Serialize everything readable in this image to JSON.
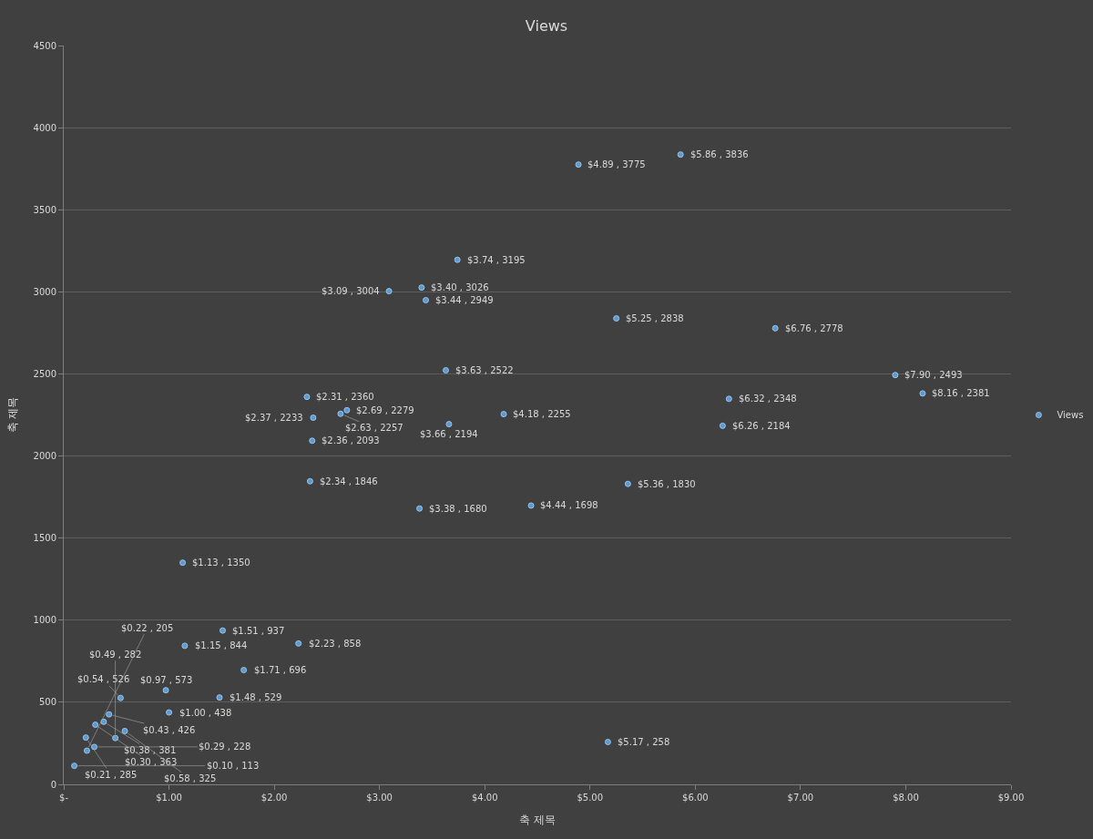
{
  "chart_data": {
    "type": "scatter",
    "title": "Views",
    "xlabel": "축 제목",
    "ylabel": "축 제목",
    "x": [
      4.89,
      5.86,
      3.74,
      3.09,
      3.4,
      3.44,
      5.25,
      6.76,
      3.63,
      7.9,
      8.16,
      2.31,
      6.32,
      2.69,
      2.63,
      2.37,
      4.18,
      3.66,
      6.26,
      2.36,
      2.34,
      5.36,
      3.38,
      4.44,
      1.13,
      1.51,
      1.15,
      2.23,
      1.71,
      0.97,
      0.54,
      1.48,
      1.0,
      0.43,
      0.38,
      0.3,
      0.58,
      0.21,
      0.49,
      0.29,
      0.22,
      0.1,
      5.17
    ],
    "series": [
      {
        "name": "Views",
        "color": "#5b9bd5",
        "values": [
          3775,
          3836,
          3195,
          3004,
          3026,
          2949,
          2838,
          2778,
          2522,
          2493,
          2381,
          2360,
          2348,
          2279,
          2257,
          2233,
          2255,
          2194,
          2184,
          2093,
          1846,
          1830,
          1680,
          1698,
          1350,
          937,
          844,
          858,
          696,
          573,
          526,
          529,
          438,
          426,
          381,
          363,
          325,
          285,
          282,
          228,
          205,
          113,
          258
        ],
        "value_labels": [
          "$4.89 , 3775",
          "$5.86 , 3836",
          "$3.74 , 3195",
          "$3.09 , 3004",
          "$3.40 , 3026",
          "$3.44 , 2949",
          "$5.25 , 2838",
          "$6.76 , 2778",
          "$3.63 , 2522",
          "$7.90 , 2493",
          "$8.16 , 2381",
          "$2.31 , 2360",
          "$6.32 , 2348",
          "$2.69 , 2279",
          "$2.63 , 2257",
          "$2.37 , 2233",
          "$4.18 , 2255",
          "$3.66 , 2194",
          "$6.26 , 2184",
          "$2.36 , 2093",
          "$2.34 , 1846",
          "$5.36 , 1830",
          "$3.38 , 1680",
          "$4.44 , 1698",
          "$1.13 , 1350",
          "$1.51 , 937",
          "$1.15 , 844",
          "$2.23 , 858",
          "$1.71 , 696",
          "$0.97 , 573",
          "$0.54 , 526",
          "$1.48 , 529",
          "$1.00 , 438",
          "$0.43 , 426",
          "$0.38 , 381",
          "$0.30 , 363",
          "$0.58 , 325",
          "$0.21 , 285",
          "$0.49 , 282",
          "$0.29 , 228",
          "$0.22 , 205",
          "$0.10 , 113",
          "$5.17 , 258"
        ]
      }
    ],
    "xlim": [
      0,
      9
    ],
    "xticks": [
      {
        "value": 0,
        "label": "$-"
      },
      {
        "value": 1,
        "label": "$1.00"
      },
      {
        "value": 2,
        "label": "$2.00"
      },
      {
        "value": 3,
        "label": "$3.00"
      },
      {
        "value": 4,
        "label": "$4.00"
      },
      {
        "value": 5,
        "label": "$5.00"
      },
      {
        "value": 6,
        "label": "$6.00"
      },
      {
        "value": 7,
        "label": "$7.00"
      },
      {
        "value": 8,
        "label": "$8.00"
      },
      {
        "value": 9,
        "label": "$9.00"
      }
    ],
    "ylim": [
      0,
      4500
    ],
    "yticks": [
      0,
      500,
      1000,
      1500,
      2000,
      2500,
      3000,
      3500,
      4000,
      4500
    ],
    "grid": "y",
    "legend": "right",
    "marker": "circle"
  }
}
